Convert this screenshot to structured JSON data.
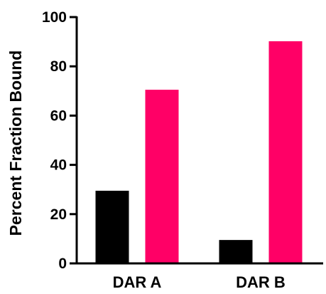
{
  "chart_data": {
    "type": "bar",
    "title": "",
    "xlabel": "",
    "ylabel": "Percent Fraction Bound",
    "ylim": [
      0,
      100
    ],
    "yticks": [
      0,
      20,
      40,
      60,
      80,
      100
    ],
    "categories": [
      "DAR A",
      "DAR B"
    ],
    "series": [
      {
        "values": [
          29.5,
          9.5
        ],
        "color": "#000000"
      },
      {
        "values": [
          70.5,
          90.2
        ],
        "color": "#ff0066"
      }
    ],
    "grid": false,
    "legend": "none"
  }
}
